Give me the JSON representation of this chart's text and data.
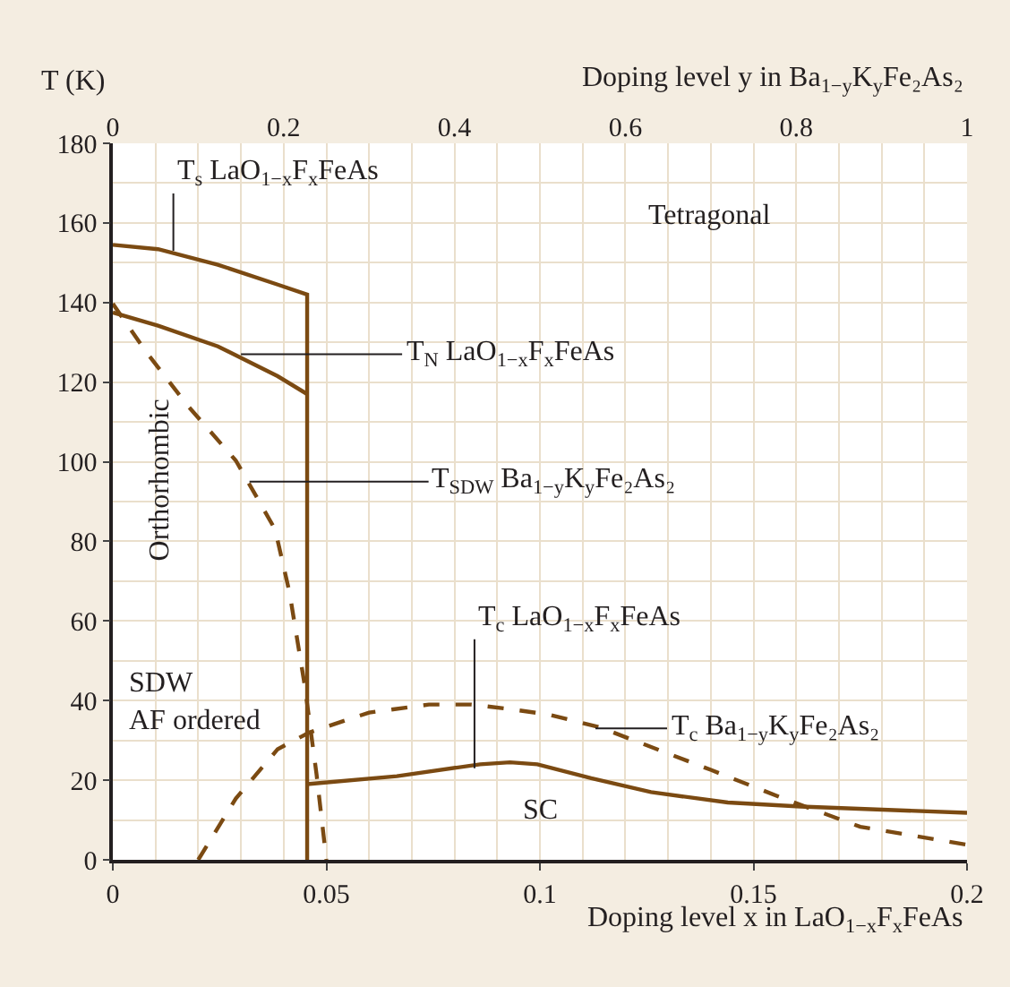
{
  "chart_data": {
    "type": "line",
    "xlabel": "Doping level x in LaO$_{1−x}$F$_{x}$FeAs",
    "x2label": "Doping level y in Ba$_{1−y}$K$_{y}$Fe₂As₂",
    "ylabel": "T (K)",
    "xlim": [
      0,
      0.2
    ],
    "xticks": [
      0,
      0.05,
      {
        "value": 0.1,
        "label": "0.1"
      },
      0.15,
      {
        "value": 0.2,
        "label": "0.2"
      }
    ],
    "x2lim": [
      0,
      1
    ],
    "x2ticks": [
      0,
      {
        "value": 0.2,
        "label": "0.2"
      },
      {
        "value": 0.4,
        "label": "0.4"
      },
      {
        "value": 0.6,
        "label": "0.6"
      },
      {
        "value": 0.8,
        "label": "0.8"
      },
      1
    ],
    "ylim": [
      0,
      180
    ],
    "yticks": [
      0,
      20,
      40,
      60,
      80,
      100,
      120,
      140,
      160,
      180
    ],
    "grid": true,
    "series": [
      {
        "color": "#7b4a12",
        "line_style": "solid",
        "x": [
          0,
          0.0106,
          0.0246,
          0.0386,
          0.0455,
          0.0455
        ],
        "values": [
          154.5,
          153.4,
          149.5,
          144.5,
          142,
          0
        ]
      },
      {
        "color": "#7b4a12",
        "line_style": "solid",
        "x": [
          0,
          0.0106,
          0.0246,
          0.0386,
          0.0455
        ],
        "values": [
          137.5,
          134.2,
          129,
          121.5,
          117
        ]
      },
      {
        "color": "#7b4a12",
        "line_style": "dashed",
        "axis": "x2",
        "x": [
          0,
          0.039,
          0.088,
          0.144,
          0.19,
          0.207,
          0.2245,
          0.2385,
          0.25
        ],
        "values": [
          139.7,
          127.6,
          114,
          100.3,
          83,
          67,
          44,
          21.5,
          0
        ]
      },
      {
        "color": "#7b4a12",
        "line_style": "solid",
        "x": [
          0.0455,
          0.0665,
          0.086,
          0.093,
          0.0994,
          0.112,
          0.126,
          0.144,
          0.161,
          0.2
        ],
        "values": [
          19,
          21,
          24,
          24.5,
          24,
          20.5,
          17,
          14.4,
          13.4,
          11.8
        ]
      },
      {
        "color": "#7b4a12",
        "line_style": "dashed",
        "axis": "x2",
        "x": [
          0.1,
          0.144,
          0.193,
          0.23,
          0.3,
          0.37,
          0.42,
          0.46,
          0.51,
          0.57,
          0.7,
          0.79,
          0.875,
          1.0
        ],
        "values": [
          0,
          15.4,
          27.8,
          32,
          37,
          39,
          39,
          38,
          36.5,
          33.3,
          22.6,
          15,
          8.3,
          3.8
        ]
      }
    ],
    "annotations": [
      {
        "text": "T$_{s}$ LaO$_{1−x}$F$_{x}$FeAs",
        "x": 0.0125,
        "y": 153
      },
      {
        "text": "T$_{N}$ LaO$_{1−x}$F$_{x}$FeAs",
        "x": 0.03,
        "y": 127
      },
      {
        "text": "T$_{SDW}$ Ba$_{1−y}$K$_{y}$Fe₂As₂",
        "x": 0.032,
        "y": 95
      },
      {
        "text": "T$_{c}$ LaO$_{1−x}$F$_{x}$FeAs",
        "x": 0.083,
        "y": 23
      },
      {
        "text": "T$_{c}$ Ba$_{1−y}$K$_{y}$Fe₂As₂",
        "x": 0.113,
        "y": 33
      },
      "Tetragonal",
      "Orthorhombic",
      "SDW\nAF ordered",
      "SC"
    ]
  }
}
